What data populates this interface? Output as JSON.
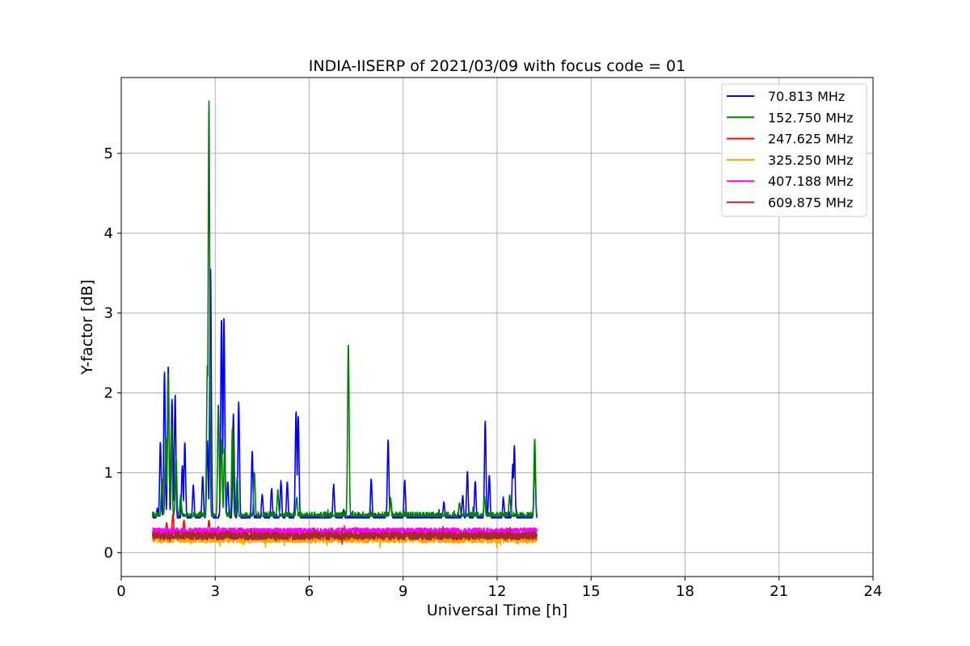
{
  "chart_data": {
    "type": "line",
    "title": "INDIA-IISERP of 2021/03/09 with focus code = 01",
    "xlabel": "Universal Time [h]",
    "ylabel": "Y-factor [dB]",
    "xlim": [
      0,
      24
    ],
    "ylim": [
      -0.3,
      5.95
    ],
    "x_ticks": [
      0,
      3,
      6,
      9,
      12,
      15,
      18,
      21,
      24
    ],
    "y_ticks": [
      0,
      1,
      2,
      3,
      4,
      5
    ],
    "grid": true,
    "legend_position": "top-right",
    "series": [
      {
        "name": "  70.813 MHz",
        "color": "#0000ff",
        "baseline": 0.42,
        "noise": 0.06,
        "x_range": [
          1.0,
          13.27
        ],
        "peaks": [
          [
            1.15,
            0.55
          ],
          [
            1.25,
            1.38
          ],
          [
            1.38,
            2.27
          ],
          [
            1.5,
            2.33
          ],
          [
            1.62,
            1.92
          ],
          [
            1.72,
            1.97
          ],
          [
            1.95,
            1.09
          ],
          [
            2.03,
            1.38
          ],
          [
            2.3,
            0.84
          ],
          [
            2.6,
            0.96
          ],
          [
            2.75,
            1.4
          ],
          [
            2.85,
            3.57
          ],
          [
            3.2,
            2.92
          ],
          [
            3.28,
            2.93
          ],
          [
            3.4,
            0.89
          ],
          [
            3.58,
            1.73
          ],
          [
            3.75,
            1.88
          ],
          [
            4.18,
            1.26
          ],
          [
            4.5,
            0.73
          ],
          [
            4.8,
            0.8
          ],
          [
            5.1,
            0.89
          ],
          [
            5.3,
            0.88
          ],
          [
            5.58,
            1.77
          ],
          [
            5.65,
            1.71
          ],
          [
            6.78,
            0.85
          ],
          [
            7.1,
            0.53
          ],
          [
            7.98,
            0.92
          ],
          [
            8.52,
            1.41
          ],
          [
            8.6,
            0.66
          ],
          [
            9.05,
            0.9
          ],
          [
            10.3,
            0.63
          ],
          [
            10.9,
            0.71
          ],
          [
            11.05,
            1.01
          ],
          [
            11.3,
            0.9
          ],
          [
            11.62,
            1.63
          ],
          [
            11.75,
            0.96
          ],
          [
            12.2,
            0.68
          ],
          [
            12.5,
            1.12
          ],
          [
            12.55,
            1.34
          ],
          [
            13.2,
            1.19
          ]
        ]
      },
      {
        "name": "152.750 MHz",
        "color": "#008000",
        "baseline": 0.44,
        "noise": 0.07,
        "x_range": [
          1.0,
          13.27
        ],
        "peaks": [
          [
            1.3,
            0.92
          ],
          [
            1.42,
            1.45
          ],
          [
            1.5,
            2.25
          ],
          [
            1.6,
            1.6
          ],
          [
            1.75,
            1.2
          ],
          [
            1.9,
            0.72
          ],
          [
            2.75,
            2.35
          ],
          [
            2.8,
            5.66
          ],
          [
            3.1,
            1.86
          ],
          [
            3.2,
            1.41
          ],
          [
            3.3,
            1.31
          ],
          [
            3.55,
            1.57
          ],
          [
            3.7,
            0.95
          ],
          [
            4.25,
            1.01
          ],
          [
            5.0,
            0.78
          ],
          [
            5.6,
            0.7
          ],
          [
            7.25,
            2.6
          ],
          [
            8.6,
            0.68
          ],
          [
            10.8,
            0.62
          ],
          [
            11.6,
            0.7
          ],
          [
            12.4,
            0.72
          ],
          [
            13.2,
            1.43
          ]
        ]
      },
      {
        "name": "247.625 MHz",
        "color": "#ff0000",
        "baseline": 0.2,
        "noise": 0.05,
        "x_range": [
          1.0,
          13.27
        ],
        "peaks": [
          [
            1.45,
            0.37
          ],
          [
            1.65,
            0.48
          ],
          [
            2.0,
            0.4
          ],
          [
            2.8,
            0.4
          ],
          [
            3.1,
            0.32
          ]
        ]
      },
      {
        "name": "325.250 MHz",
        "color": "#ffa500",
        "baseline": 0.17,
        "noise": 0.05,
        "x_range": [
          1.0,
          13.27
        ],
        "peaks": []
      },
      {
        "name": "407.188 MHz",
        "color": "#ff00ff",
        "baseline": 0.27,
        "noise": 0.04,
        "x_range": [
          1.0,
          13.27
        ],
        "peaks": []
      },
      {
        "name": "609.875 MHz",
        "color": "#a52a2a",
        "baseline": 0.21,
        "noise": 0.05,
        "x_range": [
          1.0,
          13.27
        ],
        "peaks": []
      }
    ]
  }
}
